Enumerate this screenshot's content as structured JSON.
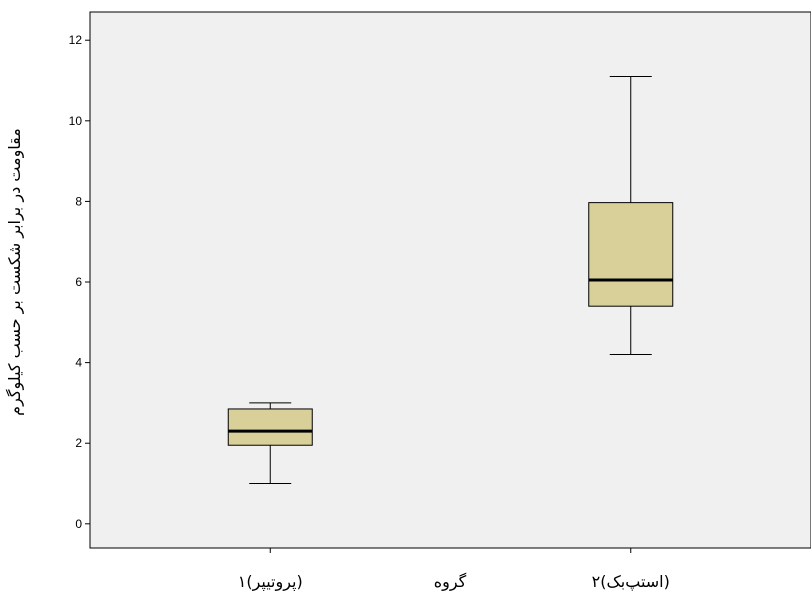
{
  "chart_data": {
    "type": "boxplot",
    "xlabel": "گروه",
    "ylabel": "مقاومت در برابر شکست بر حسب کیلوگرم",
    "ylim": [
      -0.6,
      12.7
    ],
    "yticks": [
      0,
      2,
      4,
      6,
      8,
      10,
      12
    ],
    "grid": false,
    "colors": {
      "plot_background": "#f0f0f0",
      "box_fill": "#d9cf99",
      "stroke": "#000000"
    },
    "categories": [
      "۱(پروتیپر)",
      "۲(استپ‌بک)"
    ],
    "boxes": [
      {
        "min": 1.0,
        "q1": 1.95,
        "median": 2.3,
        "q3": 2.85,
        "max": 3.0
      },
      {
        "min": 4.2,
        "q1": 5.4,
        "median": 6.05,
        "q3": 7.97,
        "max": 11.1
      }
    ]
  }
}
